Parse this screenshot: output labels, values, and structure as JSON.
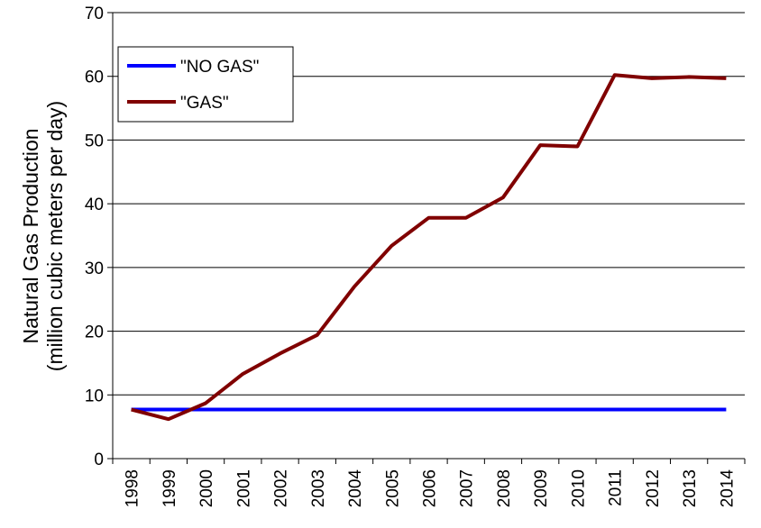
{
  "chart_data": {
    "type": "line",
    "y_label": [
      "Natural Gas Production",
      "(million cubic meters per day)"
    ],
    "categories": [
      "1998",
      "1999",
      "2000",
      "2001",
      "2002",
      "2003",
      "2004",
      "2005",
      "2006",
      "2007",
      "2008",
      "2009",
      "2010",
      "2011",
      "2012",
      "2013",
      "2014"
    ],
    "series": [
      {
        "name": "\"NO GAS\"",
        "color": "#0000ff",
        "values": [
          7.7,
          7.7,
          7.7,
          7.7,
          7.7,
          7.7,
          7.7,
          7.7,
          7.7,
          7.7,
          7.7,
          7.7,
          7.7,
          7.7,
          7.7,
          7.7,
          7.7
        ]
      },
      {
        "name": "\"GAS\"",
        "color": "#800000",
        "values": [
          7.7,
          6.2,
          8.7,
          13.3,
          16.5,
          19.4,
          27,
          33.4,
          37.8,
          37.8,
          41,
          49.2,
          49,
          60.2,
          59.7,
          59.9,
          59.7
        ]
      }
    ],
    "ylim": [
      0,
      70
    ],
    "yticks": [
      0,
      10,
      20,
      30,
      40,
      50,
      60,
      70
    ],
    "grid": true,
    "legend": "upper-left"
  }
}
